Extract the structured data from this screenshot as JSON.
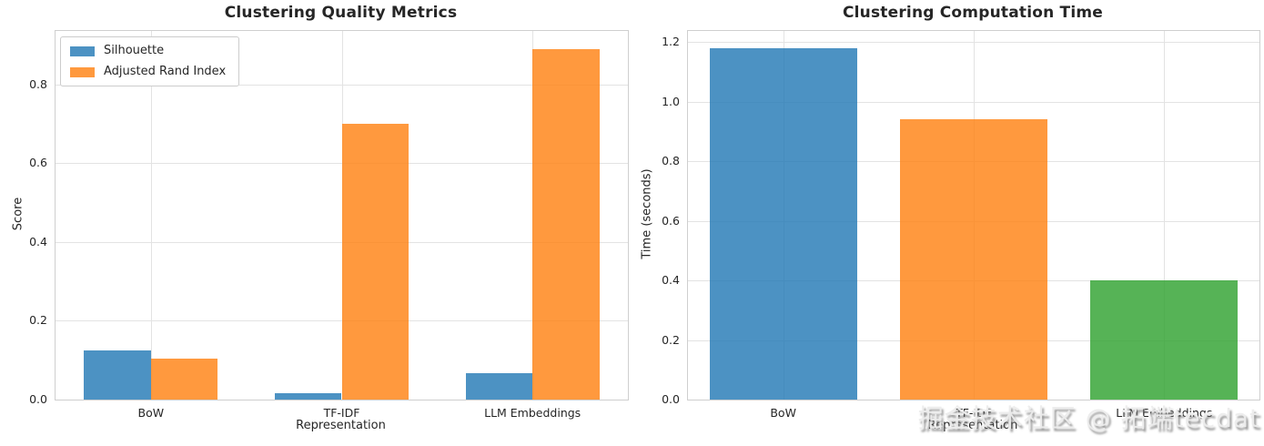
{
  "figure": {
    "background": "#ffffff"
  },
  "watermark": {
    "text": "掘金技术社区 @ 拓端tecdat"
  },
  "chart_data": [
    {
      "type": "bar",
      "title": "Clustering Quality Metrics",
      "xlabel": "Representation",
      "ylabel": "Score",
      "categories": [
        "BoW",
        "TF-IDF",
        "LLM Embeddings"
      ],
      "series": [
        {
          "name": "Silhouette",
          "color": "#1f77b4",
          "values": [
            0.125,
            0.016,
            0.067
          ]
        },
        {
          "name": "Adjusted Rand Index",
          "color": "#ff7f0e",
          "values": [
            0.104,
            0.7,
            0.89
          ]
        }
      ],
      "bar_alpha": 0.8,
      "bar_width": 0.35,
      "ylim": [
        0,
        0.936
      ],
      "yticks": [
        "0.0",
        "0.2",
        "0.4",
        "0.6",
        "0.8"
      ],
      "grid": true,
      "legend_position": "upper left"
    },
    {
      "type": "bar",
      "title": "Clustering Computation Time",
      "xlabel": "Representation",
      "ylabel": "Time (seconds)",
      "categories": [
        "BoW",
        "TF-IDF",
        "LLM Embeddings"
      ],
      "series": [
        {
          "name": "Time",
          "colors": [
            "#1f77b4",
            "#ff7f0e",
            "#2ca02c"
          ],
          "values": [
            1.18,
            0.94,
            0.4
          ]
        }
      ],
      "bar_alpha": 0.8,
      "bar_width": 0.775,
      "ylim": [
        0,
        1.237
      ],
      "yticks": [
        "0.0",
        "0.2",
        "0.4",
        "0.6",
        "0.8",
        "1.0",
        "1.2"
      ],
      "grid": true,
      "legend_position": "none"
    }
  ]
}
